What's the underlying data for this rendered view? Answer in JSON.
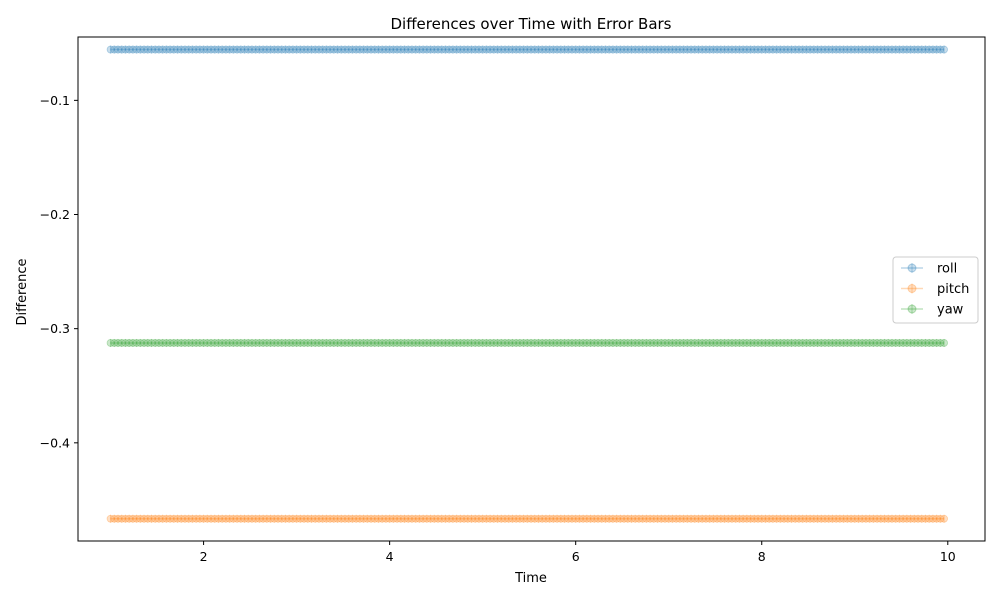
{
  "chart_data": {
    "type": "line",
    "title": "Differences over Time with Error Bars",
    "xlabel": "Time",
    "ylabel": "Difference",
    "xlim": [
      0.65,
      10.4
    ],
    "ylim": [
      -0.486,
      -0.0445
    ],
    "x_ticks": [
      2,
      4,
      6,
      8,
      10
    ],
    "y_ticks": [
      -0.1,
      -0.2,
      -0.3,
      -0.4
    ],
    "x_tick_labels": [
      "2",
      "4",
      "6",
      "8",
      "10"
    ],
    "y_tick_labels": [
      "−0.1",
      "−0.2",
      "−0.3",
      "−0.4"
    ],
    "x_start": 1.0,
    "x_end": 9.96,
    "x_step": 0.04,
    "series": [
      {
        "name": "roll",
        "y": -0.0555,
        "color": "#1f77b4"
      },
      {
        "name": "pitch",
        "y": -0.4665,
        "color": "#ff7f0e"
      },
      {
        "name": "yaw",
        "y": -0.3125,
        "color": "#2ca02c"
      }
    ],
    "grid": false,
    "legend_position": "center-right"
  }
}
